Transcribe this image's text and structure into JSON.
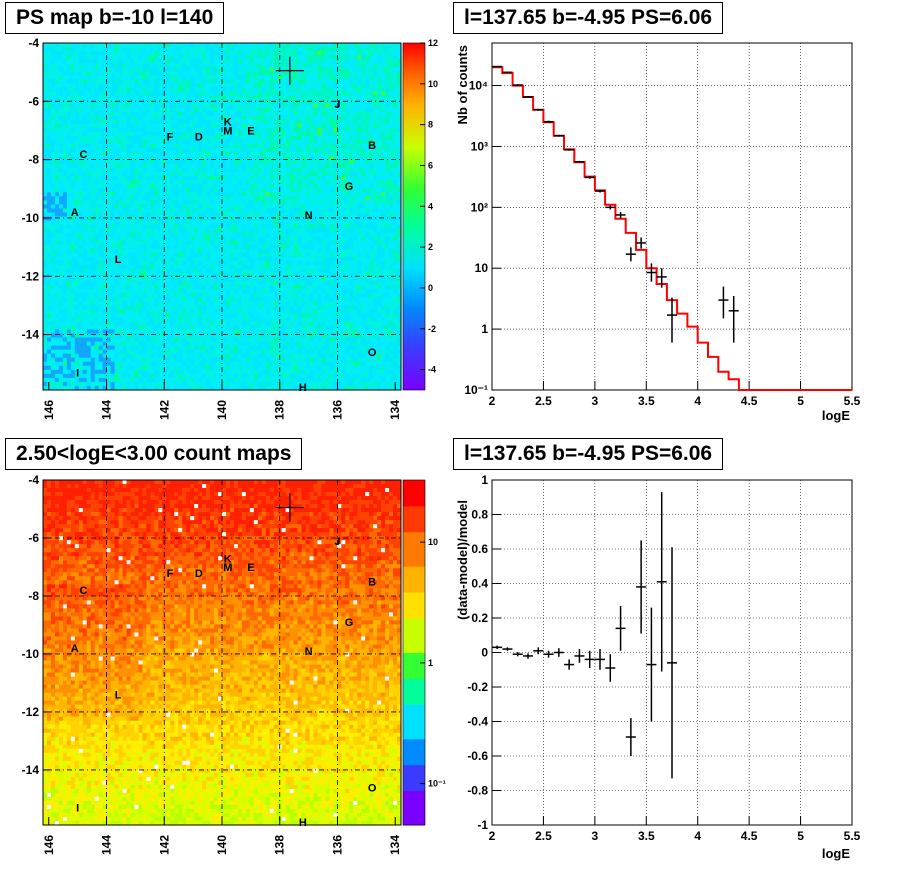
{
  "titles": {
    "map_top": "PS map b=-10 l=140",
    "map_bottom": "2.50<logE<3.00 count maps",
    "spec_top": "l=137.65 b=-4.95 PS=6.06",
    "spec_bottom": "l=137.65 b=-4.95 PS=6.06"
  },
  "colors": {
    "model_line": "#ff0000",
    "data": "#000000"
  },
  "chart_data": [
    {
      "id": "ps_map",
      "type": "heatmap",
      "title": "PS map b=-10 l=140",
      "x_ticks": [
        "146",
        "144",
        "142",
        "140",
        "138",
        "136",
        "134"
      ],
      "y_ticks": [
        "-4",
        "-6",
        "-8",
        "-10",
        "-12",
        "-14"
      ],
      "xlim": [
        146.2,
        133.8
      ],
      "ylim": [
        -15.9,
        -4
      ],
      "colorbar_ticks": [
        "12",
        "10",
        "8",
        "6",
        "4",
        "2",
        "0",
        "-2",
        "-4"
      ],
      "colorbar_range": [
        -5,
        12
      ],
      "grid": true,
      "marker": {
        "l": 137.65,
        "b": -4.95
      },
      "sources": [
        {
          "name": "A",
          "l": 145.1,
          "b": -9.8
        },
        {
          "name": "B",
          "l": 134.8,
          "b": -7.5
        },
        {
          "name": "C",
          "l": 144.8,
          "b": -7.8
        },
        {
          "name": "D",
          "l": 140.8,
          "b": -7.2
        },
        {
          "name": "E",
          "l": 139.0,
          "b": -7.0
        },
        {
          "name": "F",
          "l": 141.8,
          "b": -7.2
        },
        {
          "name": "G",
          "l": 135.6,
          "b": -8.9
        },
        {
          "name": "H",
          "l": 137.2,
          "b": -15.8
        },
        {
          "name": "I",
          "l": 145.0,
          "b": -15.3
        },
        {
          "name": "J",
          "l": 136.0,
          "b": -6.1
        },
        {
          "name": "K",
          "l": 139.8,
          "b": -6.7
        },
        {
          "name": "L",
          "l": 143.6,
          "b": -11.4
        },
        {
          "name": "M",
          "l": 139.8,
          "b": -7.0
        },
        {
          "name": "N",
          "l": 137.0,
          "b": -9.9
        },
        {
          "name": "O",
          "l": 134.8,
          "b": -14.6
        }
      ]
    },
    {
      "id": "count_map",
      "type": "heatmap",
      "title": "2.50<logE<3.00 count maps",
      "x_ticks": [
        "146",
        "144",
        "142",
        "140",
        "138",
        "136",
        "134"
      ],
      "y_ticks": [
        "-4",
        "-6",
        "-8",
        "-10",
        "-12",
        "-14"
      ],
      "xlim": [
        146.2,
        133.8
      ],
      "ylim": [
        -15.9,
        -4
      ],
      "colorbar_ticks": [
        "10",
        "1",
        "10⁻¹"
      ],
      "colorbar_log": true,
      "grid": true,
      "marker": {
        "l": 137.65,
        "b": -4.95
      },
      "sources_same_as": "ps_map"
    },
    {
      "id": "spectrum",
      "type": "line",
      "title": "l=137.65 b=-4.95 PS=6.06",
      "xlabel": "logE",
      "ylabel": "Nb of counts",
      "xlim": [
        2,
        5.5
      ],
      "ylim": [
        0.1,
        50000
      ],
      "yscale": "log",
      "x_ticks": [
        "2",
        "2.5",
        "3",
        "3.5",
        "4",
        "4.5",
        "5",
        "5.5"
      ],
      "y_ticks": [
        {
          "v": 0.1,
          "t": "10⁻¹"
        },
        {
          "v": 1,
          "t": "1"
        },
        {
          "v": 10,
          "t": "10"
        },
        {
          "v": 100,
          "t": "10²"
        },
        {
          "v": 1000,
          "t": "10³"
        },
        {
          "v": 10000,
          "t": "10⁴"
        }
      ],
      "grid": true,
      "model_edges": [
        2.0,
        2.1,
        2.2,
        2.3,
        2.4,
        2.5,
        2.6,
        2.7,
        2.8,
        2.9,
        3.0,
        3.1,
        3.2,
        3.3,
        3.4,
        3.5,
        3.6,
        3.7,
        3.8,
        3.9,
        4.0,
        4.1,
        4.2,
        4.3,
        4.4,
        4.5,
        4.6,
        4.7,
        4.8,
        4.9,
        5.0,
        5.1,
        5.2,
        5.3,
        5.4,
        5.5
      ],
      "model_values": [
        20000,
        16000,
        10000,
        6500,
        4000,
        2500,
        1500,
        900,
        550,
        320,
        190,
        110,
        65,
        38,
        20,
        10,
        5.5,
        3,
        1.8,
        1.1,
        0.6,
        0.35,
        0.2,
        0.15,
        0.1,
        0.1,
        0.1,
        0.1,
        0.1,
        0.1,
        0.1,
        0.1,
        0.1,
        0.1,
        0.1
      ],
      "data_points": [
        {
          "x": 2.05,
          "y": 20500,
          "lo": 20000,
          "hi": 21000
        },
        {
          "x": 2.15,
          "y": 16500,
          "lo": 16000,
          "hi": 17000
        },
        {
          "x": 2.25,
          "y": 10200,
          "lo": 9900,
          "hi": 10500
        },
        {
          "x": 2.35,
          "y": 6500,
          "lo": 6300,
          "hi": 6700
        },
        {
          "x": 2.45,
          "y": 4000,
          "lo": 3850,
          "hi": 4150
        },
        {
          "x": 2.55,
          "y": 2550,
          "lo": 2450,
          "hi": 2650
        },
        {
          "x": 2.65,
          "y": 1500,
          "lo": 1450,
          "hi": 1550
        },
        {
          "x": 2.75,
          "y": 880,
          "lo": 850,
          "hi": 910
        },
        {
          "x": 2.85,
          "y": 560,
          "lo": 540,
          "hi": 580
        },
        {
          "x": 2.95,
          "y": 310,
          "lo": 295,
          "hi": 325
        },
        {
          "x": 3.05,
          "y": 185,
          "lo": 175,
          "hi": 195
        },
        {
          "x": 3.15,
          "y": 100,
          "lo": 92,
          "hi": 108
        },
        {
          "x": 3.25,
          "y": 75,
          "lo": 66,
          "hi": 84
        },
        {
          "x": 3.35,
          "y": 17,
          "lo": 13,
          "hi": 22
        },
        {
          "x": 3.45,
          "y": 26,
          "lo": 21,
          "hi": 32
        },
        {
          "x": 3.55,
          "y": 8.5,
          "lo": 6,
          "hi": 12
        },
        {
          "x": 3.65,
          "y": 7.2,
          "lo": 4.8,
          "hi": 10
        },
        {
          "x": 3.75,
          "y": 1.7,
          "lo": 0.6,
          "hi": 3.3
        },
        {
          "x": 4.25,
          "y": 3,
          "lo": 1.5,
          "hi": 5
        },
        {
          "x": 4.35,
          "y": 2,
          "lo": 0.6,
          "hi": 3.5
        }
      ]
    },
    {
      "id": "residuals",
      "type": "scatter",
      "title": "l=137.65 b=-4.95 PS=6.06",
      "xlabel": "logE",
      "ylabel": "(data-model)/model",
      "xlim": [
        2,
        5.5
      ],
      "ylim": [
        -1,
        1
      ],
      "x_ticks": [
        "2",
        "2.5",
        "3",
        "3.5",
        "4",
        "4.5",
        "5",
        "5.5"
      ],
      "y_ticks": [
        "1",
        "0.8",
        "0.6",
        "0.4",
        "0.2",
        "0",
        "-0.2",
        "-0.4",
        "-0.6",
        "-0.8",
        "-1"
      ],
      "grid": true,
      "points": [
        {
          "x": 2.05,
          "y": 0.03,
          "err": 0.01
        },
        {
          "x": 2.15,
          "y": 0.02,
          "err": 0.01
        },
        {
          "x": 2.25,
          "y": -0.01,
          "err": 0.012
        },
        {
          "x": 2.35,
          "y": -0.02,
          "err": 0.015
        },
        {
          "x": 2.45,
          "y": 0.01,
          "err": 0.02
        },
        {
          "x": 2.55,
          "y": -0.01,
          "err": 0.02
        },
        {
          "x": 2.65,
          "y": 0.0,
          "err": 0.025
        },
        {
          "x": 2.75,
          "y": -0.07,
          "err": 0.03
        },
        {
          "x": 2.85,
          "y": -0.02,
          "err": 0.04
        },
        {
          "x": 2.95,
          "y": -0.04,
          "err": 0.05
        },
        {
          "x": 3.05,
          "y": -0.04,
          "err": 0.06
        },
        {
          "x": 3.15,
          "y": -0.09,
          "err": 0.08
        },
        {
          "x": 3.25,
          "y": 0.14,
          "err": 0.13
        },
        {
          "x": 3.35,
          "y": -0.49,
          "err": 0.11
        },
        {
          "x": 3.45,
          "y": 0.38,
          "err": 0.27
        },
        {
          "x": 3.55,
          "y": -0.07,
          "err": 0.33
        },
        {
          "x": 3.65,
          "y": 0.41,
          "err": 0.52
        },
        {
          "x": 3.75,
          "y": -0.06,
          "err": 0.67
        }
      ]
    }
  ]
}
